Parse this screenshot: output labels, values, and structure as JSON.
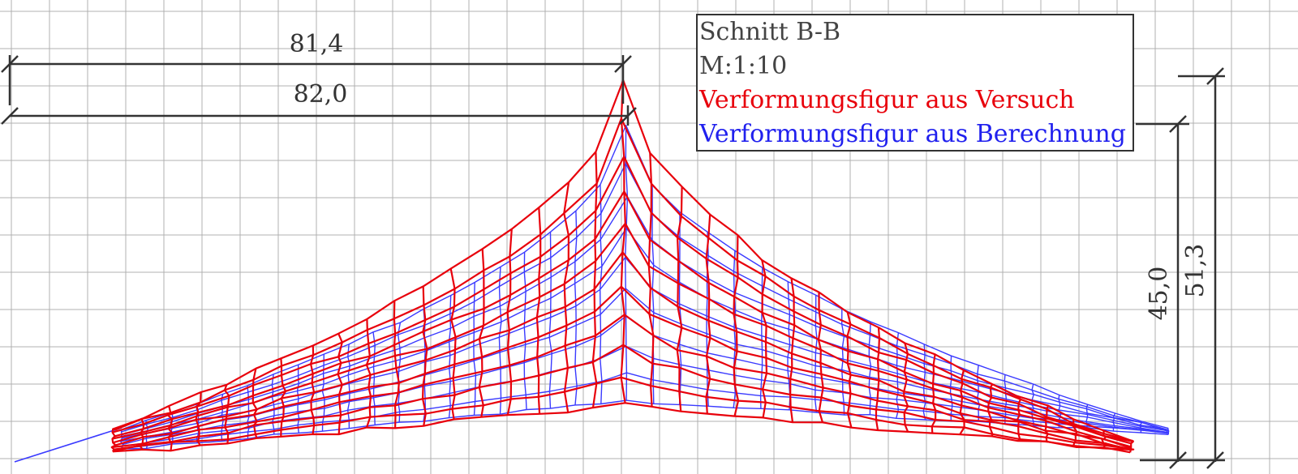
{
  "legend": {
    "title": "Schnitt B-B",
    "scale": "M:1:10",
    "experiment_label": "Verformungsfigur aus Versuch",
    "calculation_label": "Verformungsfigur aus Berechnung"
  },
  "dimensions": {
    "span_top": "81,4",
    "span_bottom": "82,0",
    "height_inner": "45,0",
    "height_outer": "51,3"
  },
  "colors": {
    "experiment": "#e8000b",
    "calculation": "#3a3aff",
    "grid": "#b0b0b0",
    "dimension": "#333333"
  }
}
